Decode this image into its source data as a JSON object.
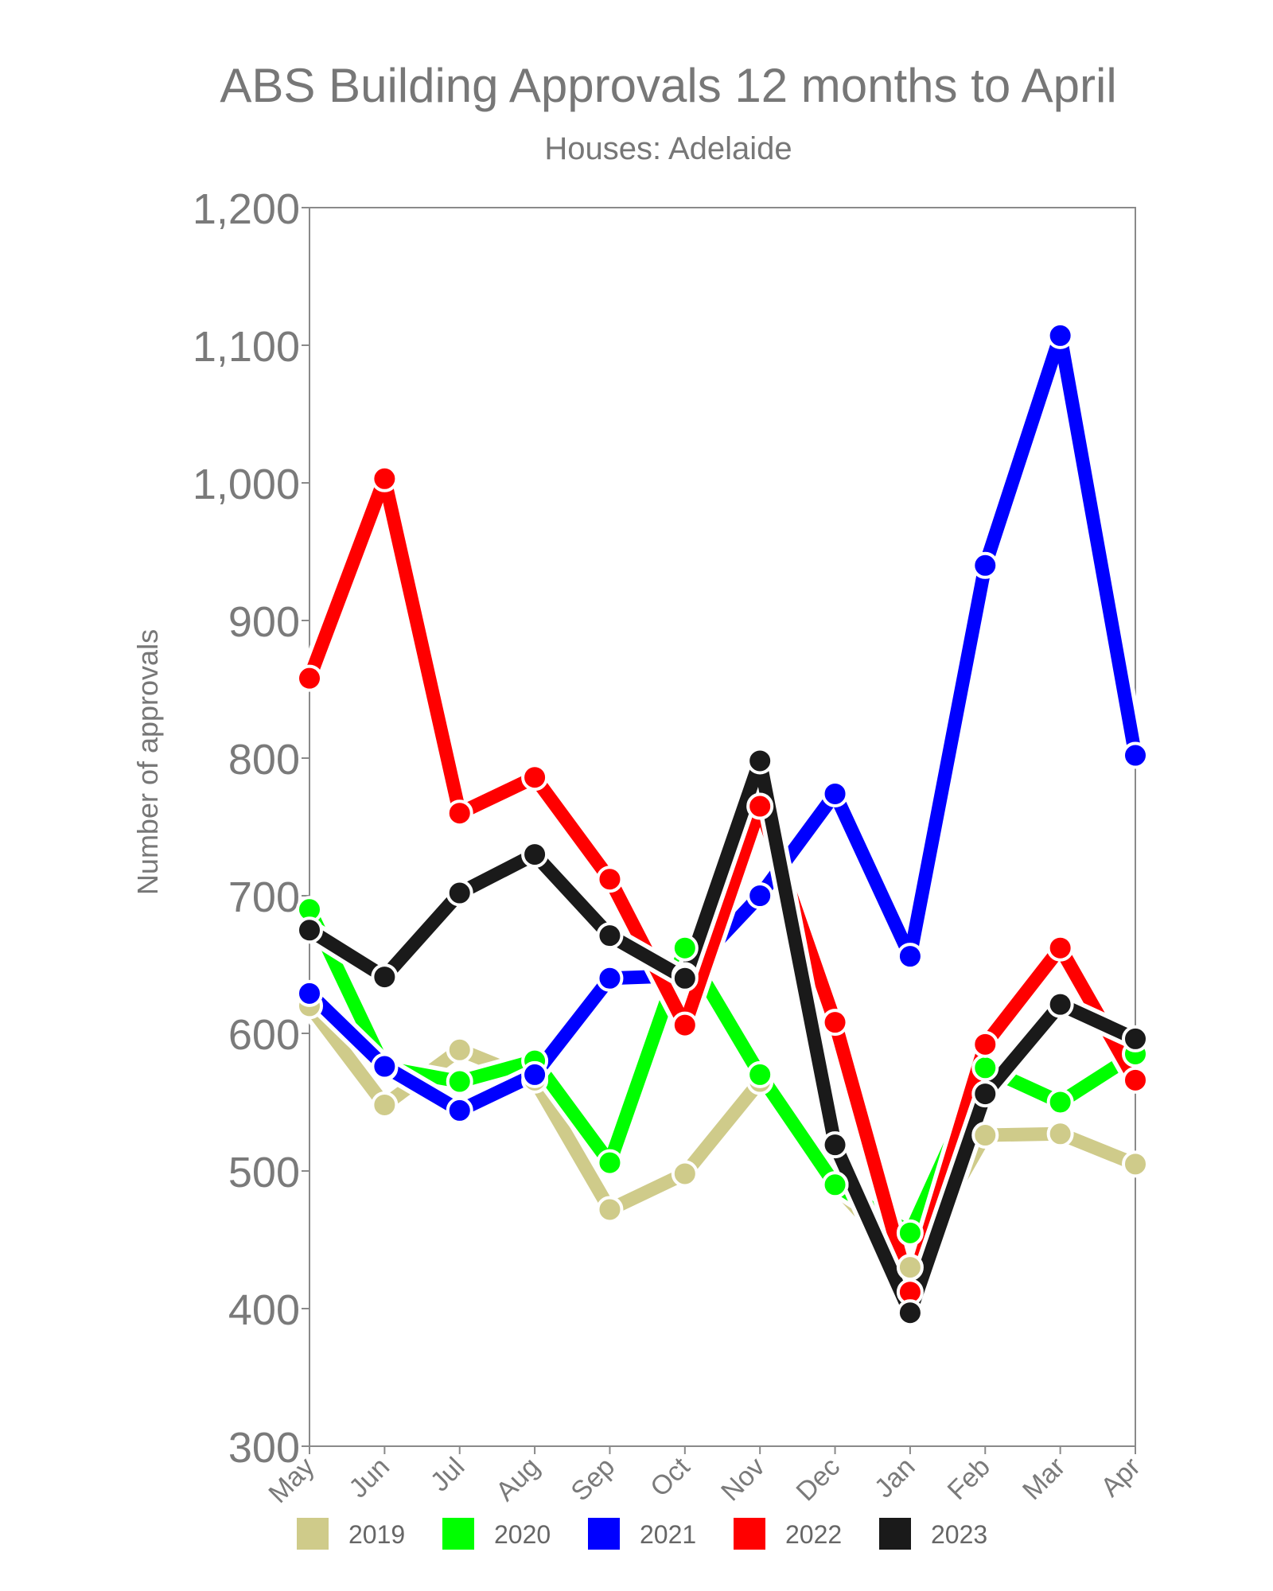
{
  "chart_data": {
    "type": "line",
    "title": "ABS Building Approvals 12 months to April",
    "subtitle": "Houses: Adelaide",
    "xlabel": "",
    "ylabel": "Number of approvals",
    "ylim": [
      300,
      1200
    ],
    "yticks": [
      300,
      400,
      500,
      600,
      700,
      800,
      900,
      1000,
      1100,
      1200
    ],
    "ytick_labels": [
      "300",
      "400",
      "500",
      "600",
      "700",
      "800",
      "900",
      "1,000",
      "1,100",
      "1,200"
    ],
    "categories": [
      "May",
      "Jun",
      "Jul",
      "Aug",
      "Sep",
      "Oct",
      "Nov",
      "Dec",
      "Jan",
      "Feb",
      "Mar",
      "Apr"
    ],
    "grid": false,
    "legend_position": "bottom",
    "series": [
      {
        "name": "2019",
        "color": "#cfcb8a",
        "values": [
          620,
          548,
          588,
          566,
          472,
          498,
          565,
          490,
          430,
          526,
          527,
          505
        ]
      },
      {
        "name": "2020",
        "color": "#00ff00",
        "values": [
          690,
          575,
          565,
          580,
          506,
          662,
          570,
          490,
          455,
          575,
          550,
          585
        ]
      },
      {
        "name": "2021",
        "color": "#0000ff",
        "values": [
          629,
          576,
          544,
          570,
          640,
          642,
          700,
          774,
          656,
          940,
          1107,
          802
        ]
      },
      {
        "name": "2022",
        "color": "#ff0000",
        "values": [
          858,
          1003,
          760,
          786,
          712,
          606,
          765,
          608,
          412,
          592,
          662,
          566
        ]
      },
      {
        "name": "2023",
        "color": "#1a1a1a",
        "values": [
          675,
          641,
          702,
          730,
          671,
          640,
          798,
          519,
          397,
          556,
          621,
          596
        ]
      }
    ]
  }
}
